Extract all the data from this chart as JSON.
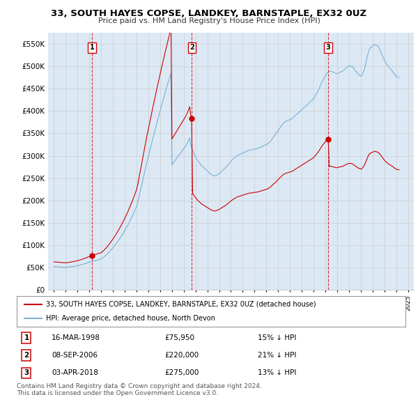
{
  "title": "33, SOUTH HAYES COPSE, LANDKEY, BARNSTAPLE, EX32 0UZ",
  "subtitle": "Price paid vs. HM Land Registry's House Price Index (HPI)",
  "legend_line1": "33, SOUTH HAYES COPSE, LANDKEY, BARNSTAPLE, EX32 0UZ (detached house)",
  "legend_line2": "HPI: Average price, detached house, North Devon",
  "copyright": "Contains HM Land Registry data © Crown copyright and database right 2024.\nThis data is licensed under the Open Government Licence v3.0.",
  "transactions": [
    {
      "num": 1,
      "date": "16-MAR-1998",
      "price": "£75,950",
      "hpi": "15% ↓ HPI",
      "x": 1998.21
    },
    {
      "num": 2,
      "date": "08-SEP-2006",
      "price": "£220,000",
      "hpi": "21% ↓ HPI",
      "x": 2006.69
    },
    {
      "num": 3,
      "date": "03-APR-2018",
      "price": "£275,000",
      "hpi": "13% ↓ HPI",
      "x": 2018.25
    }
  ],
  "transaction_prices": [
    75950,
    220000,
    275000
  ],
  "ylim": [
    0,
    575000
  ],
  "yticks": [
    0,
    50000,
    100000,
    150000,
    200000,
    250000,
    300000,
    350000,
    400000,
    450000,
    500000,
    550000
  ],
  "ytick_labels": [
    "£0",
    "£50K",
    "£100K",
    "£150K",
    "£200K",
    "£250K",
    "£300K",
    "£350K",
    "£400K",
    "£450K",
    "£500K",
    "£550K"
  ],
  "xlim_start": 1994.5,
  "xlim_end": 2025.5,
  "hpi_color": "#7bafd4",
  "price_color": "#cc0000",
  "vline_color": "#cc0000",
  "grid_color": "#cccccc",
  "bg_color": "#dce9f5",
  "hpi_monthly": [
    52000,
    51800,
    51500,
    51300,
    51100,
    50900,
    50800,
    50600,
    50500,
    50400,
    50300,
    50200,
    50100,
    50300,
    50500,
    50800,
    51100,
    51400,
    51700,
    52100,
    52400,
    52800,
    53200,
    53600,
    54000,
    54500,
    55000,
    55600,
    56200,
    56800,
    57500,
    58100,
    58800,
    59500,
    60300,
    61100,
    61900,
    62500,
    63000,
    63600,
    64100,
    64700,
    65300,
    65900,
    66500,
    67100,
    67700,
    68400,
    69000,
    70200,
    72000,
    73800,
    75600,
    77400,
    79600,
    81900,
    84200,
    86600,
    89100,
    91600,
    94200,
    97000,
    99800,
    102700,
    105700,
    108800,
    111900,
    115100,
    118400,
    121800,
    125300,
    128900,
    132500,
    136300,
    140200,
    144200,
    148500,
    152800,
    157200,
    161700,
    166300,
    171000,
    175900,
    181000,
    186200,
    193600,
    203000,
    212500,
    222200,
    232000,
    241900,
    251900,
    261900,
    271900,
    280800,
    289700,
    298500,
    307200,
    316000,
    324800,
    333500,
    342200,
    350800,
    359400,
    367800,
    376200,
    384500,
    392700,
    400800,
    408800,
    416700,
    424600,
    432500,
    440300,
    448000,
    455600,
    463100,
    470500,
    477800,
    485000,
    280000,
    283000,
    286000,
    289000,
    292000,
    295000,
    298000,
    301000,
    304000,
    307000,
    310000,
    313000,
    316000,
    319000,
    322000,
    326000,
    330000,
    335000,
    340000,
    325000,
    318000,
    312000,
    307000,
    302000,
    298000,
    294000,
    290000,
    287000,
    284000,
    281000,
    278000,
    276000,
    274000,
    272000,
    270000,
    268000,
    266000,
    264000,
    262000,
    260000,
    258000,
    257000,
    256000,
    255000,
    255000,
    256000,
    257000,
    259000,
    260000,
    262000,
    264000,
    266000,
    268000,
    270000,
    272000,
    274000,
    277000,
    279000,
    282000,
    285000,
    287000,
    290000,
    292000,
    294000,
    296000,
    298000,
    300000,
    301000,
    302000,
    303000,
    304000,
    305000,
    306000,
    307000,
    308000,
    309000,
    310000,
    311000,
    312000,
    313000,
    313000,
    313000,
    314000,
    315000,
    315000,
    315000,
    316000,
    316000,
    317000,
    318000,
    319000,
    320000,
    321000,
    322000,
    323000,
    324000,
    325000,
    326000,
    328000,
    330000,
    332000,
    335000,
    338000,
    341000,
    344000,
    347000,
    350000,
    353000,
    356000,
    360000,
    363000,
    366000,
    369000,
    372000,
    374000,
    376000,
    377000,
    378000,
    379000,
    380000,
    381000,
    382000,
    383000,
    385000,
    387000,
    389000,
    391000,
    393000,
    395000,
    397000,
    399000,
    401000,
    403000,
    405000,
    407000,
    409000,
    411000,
    413000,
    415000,
    417000,
    419000,
    421000,
    423000,
    425000,
    428000,
    431000,
    435000,
    439000,
    443000,
    447000,
    452000,
    457000,
    462000,
    467000,
    471000,
    475000,
    479000,
    483000,
    485000,
    487000,
    488000,
    490000,
    489000,
    488000,
    487000,
    486000,
    485000,
    484000,
    484000,
    485000,
    486000,
    487000,
    488000,
    489000,
    490000,
    492000,
    494000,
    496000,
    498000,
    500000,
    501000,
    501000,
    501000,
    500000,
    498000,
    495000,
    492000,
    489000,
    487000,
    484000,
    482000,
    480000,
    478000,
    480000,
    484000,
    489000,
    496000,
    505000,
    515000,
    525000,
    533000,
    539000,
    542000,
    544000,
    545000,
    547000,
    549000,
    548000,
    547000,
    546000,
    544000,
    540000,
    535000,
    530000,
    524000,
    519000,
    514000,
    510000,
    506000,
    503000,
    500000,
    497000,
    495000,
    492000,
    490000,
    487000,
    484000,
    481000,
    478000,
    477000,
    476000,
    475000
  ]
}
